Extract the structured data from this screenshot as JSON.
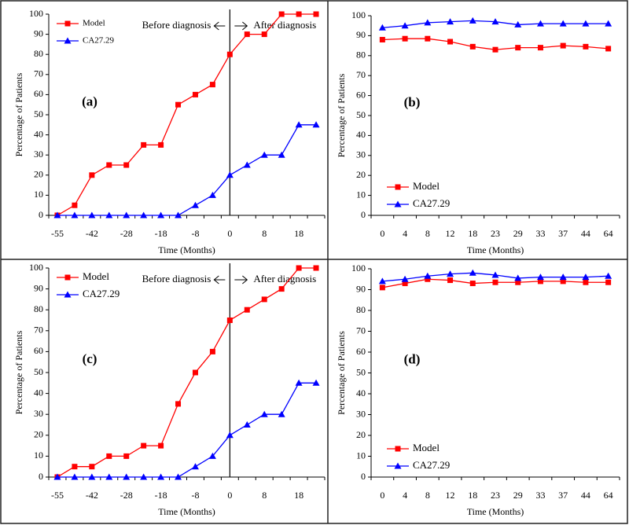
{
  "chart_data": [
    {
      "type": "line",
      "panel_label": "(a)",
      "xlabel": "Time (Months)",
      "ylabel": "Percentage of Patients",
      "categories": [
        -55,
        null,
        -42,
        null,
        -28,
        null,
        -18,
        null,
        -8,
        null,
        0,
        null,
        8,
        null,
        18,
        null
      ],
      "series": [
        {
          "name": "Model",
          "color": "#ff0000",
          "marker": "square",
          "values": [
            0,
            5,
            20,
            25,
            25,
            35,
            35,
            55,
            60,
            65,
            80,
            90,
            90,
            100,
            100,
            100
          ]
        },
        {
          "name": "CA27.29",
          "color": "#0000ff",
          "marker": "triangle",
          "values": [
            0,
            0,
            0,
            0,
            0,
            0,
            0,
            0,
            5,
            10,
            20,
            25,
            30,
            30,
            45,
            45
          ]
        }
      ],
      "ylim": [
        0,
        100
      ],
      "yticks": [
        0,
        10,
        20,
        30,
        40,
        50,
        60,
        70,
        80,
        90,
        100
      ],
      "legend": "upper left",
      "vline": 0,
      "annotations": [
        "Before diagnosis",
        "After diagnosis"
      ]
    },
    {
      "type": "line",
      "panel_label": "(b)",
      "xlabel": "Time (Months)",
      "ylabel": "Percentage of Patients",
      "categories": [
        0,
        4,
        8,
        12,
        18,
        23,
        29,
        33,
        37,
        44,
        64
      ],
      "series": [
        {
          "name": "Model",
          "color": "#ff0000",
          "marker": "square",
          "values": [
            88,
            88.5,
            88.5,
            87,
            84.5,
            83,
            84,
            84,
            85,
            84.5,
            83.5
          ]
        },
        {
          "name": "CA27.29",
          "color": "#0000ff",
          "marker": "triangle",
          "values": [
            94,
            95,
            96.5,
            97,
            97.5,
            97,
            95.5,
            96,
            96,
            96,
            96
          ]
        }
      ],
      "ylim": [
        0,
        100
      ],
      "yticks": [
        0,
        10,
        20,
        30,
        40,
        50,
        60,
        70,
        80,
        90,
        100
      ],
      "legend": "lower left"
    },
    {
      "type": "line",
      "panel_label": "(c)",
      "xlabel": "Time (Months)",
      "ylabel": "Percentage of Patients",
      "categories": [
        -55,
        null,
        -42,
        null,
        -28,
        null,
        -18,
        null,
        -8,
        null,
        0,
        null,
        8,
        null,
        18,
        null
      ],
      "series": [
        {
          "name": "Model",
          "color": "#ff0000",
          "marker": "square",
          "values": [
            0,
            5,
            5,
            10,
            10,
            15,
            15,
            35,
            50,
            60,
            75,
            80,
            85,
            90,
            100,
            100
          ]
        },
        {
          "name": "CA27.29",
          "color": "#0000ff",
          "marker": "triangle",
          "values": [
            0,
            0,
            0,
            0,
            0,
            0,
            0,
            0,
            5,
            10,
            20,
            25,
            30,
            30,
            45,
            45
          ]
        }
      ],
      "ylim": [
        0,
        100
      ],
      "yticks": [
        0,
        10,
        20,
        30,
        40,
        50,
        60,
        70,
        80,
        90,
        100
      ],
      "legend": "upper left",
      "vline": 0,
      "annotations": [
        "Before diagnosis",
        "After diagnosis"
      ]
    },
    {
      "type": "line",
      "panel_label": "(d)",
      "xlabel": "Time (Months)",
      "ylabel": "Percentage of Patients",
      "categories": [
        0,
        4,
        8,
        12,
        18,
        23,
        29,
        33,
        37,
        44,
        64
      ],
      "series": [
        {
          "name": "Model",
          "color": "#ff0000",
          "marker": "square",
          "values": [
            91,
            93,
            95,
            94.5,
            93,
            93.5,
            93.5,
            94,
            94,
            93.5,
            93.5
          ]
        },
        {
          "name": "CA27.29",
          "color": "#0000ff",
          "marker": "triangle",
          "values": [
            94,
            95,
            96.5,
            97.5,
            98,
            97,
            95.5,
            96,
            96,
            96,
            96.5
          ]
        }
      ],
      "ylim": [
        0,
        100
      ],
      "yticks": [
        0,
        10,
        20,
        30,
        40,
        50,
        60,
        70,
        80,
        90,
        100
      ],
      "legend": "lower left"
    }
  ]
}
